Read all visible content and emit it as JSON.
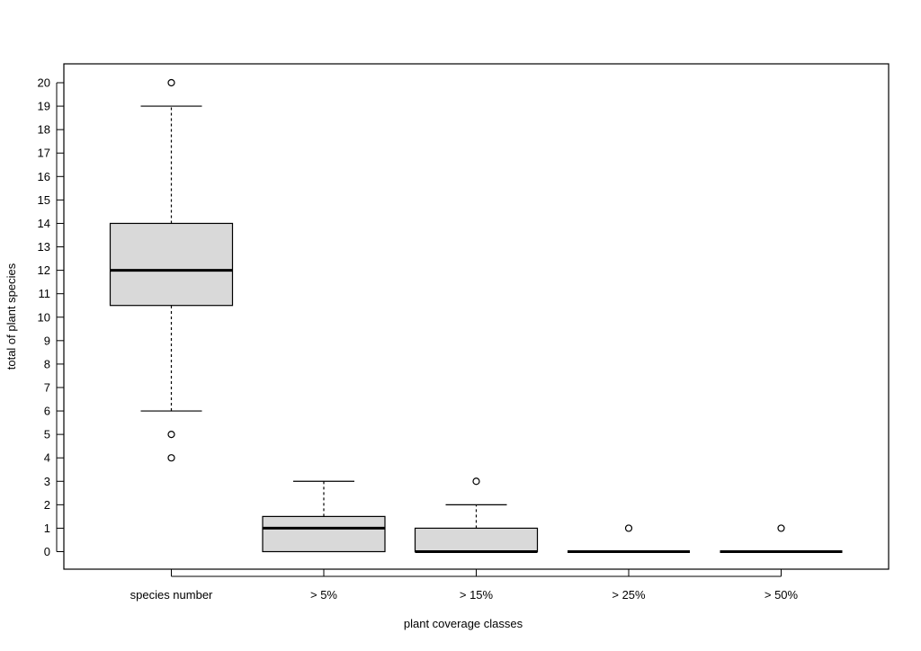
{
  "chart_data": {
    "type": "boxplot",
    "title": "",
    "xlabel": "plant coverage classes",
    "ylabel": "total of plant species",
    "ylim": [
      -0.8,
      20.8
    ],
    "yticks": [
      0,
      1,
      2,
      3,
      4,
      5,
      6,
      7,
      8,
      9,
      10,
      11,
      12,
      13,
      14,
      15,
      16,
      17,
      18,
      19,
      20
    ],
    "grid": false,
    "box_fill": "#d9d9d9",
    "categories": [
      "species number",
      "> 5%",
      "> 15%",
      "> 25%",
      "> 50%"
    ],
    "boxes": [
      {
        "category": "species number",
        "q1": 10.5,
        "median": 12,
        "q3": 14,
        "whisker_low": 6,
        "whisker_high": 19,
        "outliers": [
          20,
          5,
          4
        ]
      },
      {
        "category": "> 5%",
        "q1": 0,
        "median": 1,
        "q3": 1.5,
        "whisker_low": 0,
        "whisker_high": 3,
        "outliers": []
      },
      {
        "category": "> 15%",
        "q1": 0,
        "median": 0,
        "q3": 1,
        "whisker_low": 0,
        "whisker_high": 2,
        "outliers": [
          3
        ]
      },
      {
        "category": "> 25%",
        "q1": 0,
        "median": 0,
        "q3": 0,
        "whisker_low": 0,
        "whisker_high": 0,
        "outliers": [
          1
        ]
      },
      {
        "category": "> 50%",
        "q1": 0,
        "median": 0,
        "q3": 0,
        "whisker_low": 0,
        "whisker_high": 0,
        "outliers": [
          1
        ]
      }
    ]
  }
}
